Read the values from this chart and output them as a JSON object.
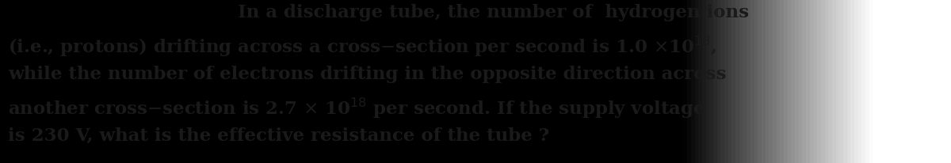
{
  "figsize": [
    12.0,
    2.06
  ],
  "dpi": 100,
  "background_color_left": "#c8c8c8",
  "background_color_right": "#e8e8e8",
  "text_color": "#1a1a1a",
  "line1": "In a discharge tube, the number of  hydrogen ions",
  "line2": "(i.e., protons) drifting across a cross–section per second is 1.0 ×10",
  "line2_sup": "18",
  "line2_end": ",",
  "line3": "while the number of electrons drifting in the opposite direction across",
  "line4_start": "another cross–section is 2.7 × 10",
  "line4_sup": "18",
  "line4_end": " per second. If the supply voltage",
  "line5": "is 230 V, what is the effective resistance of the tube ?",
  "font_size": 16.5,
  "font_weight": "bold",
  "font_family": "DejaVu Serif"
}
